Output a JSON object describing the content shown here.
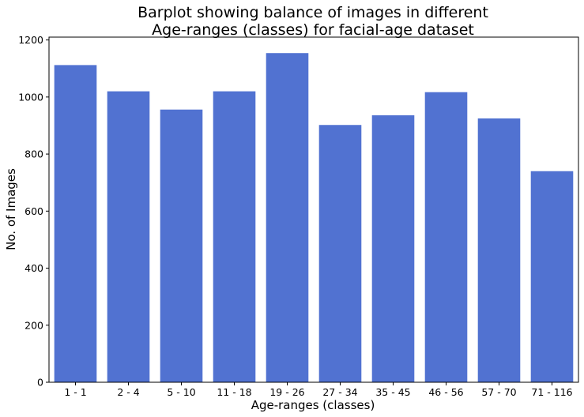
{
  "chart_data": {
    "type": "bar",
    "title_lines": [
      "Barplot showing balance of images in different",
      "Age-ranges (classes) for facial-age dataset"
    ],
    "xlabel": "Age-ranges (classes)",
    "ylabel": "No. of Images",
    "categories": [
      "1 - 1",
      "2 - 4",
      "5 - 10",
      "11 - 18",
      "19 - 26",
      "27 - 34",
      "35 - 45",
      "46 - 56",
      "57 - 70",
      "71 - 116"
    ],
    "values": [
      1112,
      1020,
      956,
      1020,
      1154,
      902,
      936,
      1017,
      925,
      740
    ],
    "ylim": [
      0,
      1210
    ],
    "yticks": [
      0,
      200,
      400,
      600,
      800,
      1000,
      1200
    ],
    "grid": false,
    "legend": "none",
    "bar_color": "#5172D1",
    "axis_color": "#000000"
  }
}
